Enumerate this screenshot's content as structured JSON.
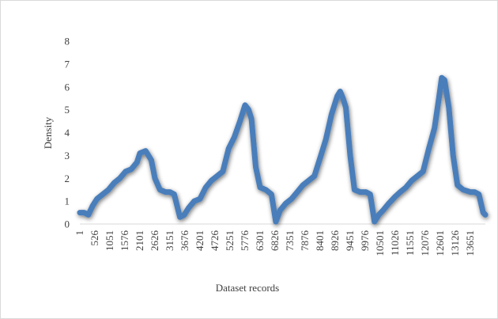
{
  "chart_data": {
    "type": "line",
    "title": "",
    "xlabel": "Dataset records",
    "ylabel": "Density",
    "ylim": [
      0,
      8
    ],
    "yticks": [
      0,
      1,
      2,
      3,
      4,
      5,
      6,
      7,
      8
    ],
    "xlim": [
      1,
      14176
    ],
    "xticks": [
      "1",
      "526",
      "1051",
      "1576",
      "2101",
      "2626",
      "3151",
      "3676",
      "4201",
      "4726",
      "5251",
      "5776",
      "6301",
      "6826",
      "7351",
      "7876",
      "8401",
      "8926",
      "9451",
      "9976",
      "10501",
      "11026",
      "11551",
      "12076",
      "12601",
      "13126",
      "13651"
    ],
    "grid": false,
    "legend": "none",
    "line_color": "#4a7ebb",
    "series": [
      {
        "x": [
          1,
          150,
          300,
          450,
          600,
          800,
          1000,
          1200,
          1400,
          1600,
          1800,
          2000,
          2101,
          2300,
          2500,
          2626,
          2800,
          3000,
          3151,
          3300,
          3500,
          3650,
          3800,
          4000,
          4201,
          4400,
          4600,
          4800,
          5000,
          5200,
          5400,
          5600,
          5776,
          5900,
          6000,
          6150,
          6301,
          6500,
          6700,
          6850,
          7000,
          7200,
          7400,
          7600,
          7800,
          8000,
          8200,
          8400,
          8600,
          8800,
          9000,
          9100,
          9200,
          9300,
          9451,
          9600,
          9800,
          10000,
          10150,
          10300,
          10450,
          10600,
          10800,
          11026,
          11200,
          11400,
          11600,
          11800,
          12000,
          12200,
          12400,
          12550,
          12650,
          12750,
          12900,
          13050,
          13200,
          13400,
          13651,
          13800,
          13950,
          14100,
          14176
        ],
        "y": [
          0.5,
          0.5,
          0.4,
          0.8,
          1.1,
          1.3,
          1.5,
          1.8,
          2.0,
          2.3,
          2.4,
          2.7,
          3.1,
          3.2,
          2.8,
          2.0,
          1.5,
          1.4,
          1.4,
          1.3,
          0.3,
          0.4,
          0.7,
          1.0,
          1.1,
          1.6,
          1.9,
          2.1,
          2.3,
          3.3,
          3.8,
          4.5,
          5.2,
          5.0,
          4.6,
          2.5,
          1.6,
          1.5,
          1.3,
          0.1,
          0.6,
          0.9,
          1.1,
          1.4,
          1.7,
          1.9,
          2.1,
          2.9,
          3.7,
          4.8,
          5.6,
          5.8,
          5.5,
          5.1,
          3.0,
          1.5,
          1.4,
          1.4,
          1.3,
          0.1,
          0.4,
          0.6,
          0.9,
          1.2,
          1.4,
          1.6,
          1.9,
          2.1,
          2.3,
          3.3,
          4.2,
          5.5,
          6.4,
          6.3,
          5.1,
          3.0,
          1.7,
          1.5,
          1.4,
          1.4,
          1.3,
          0.5,
          0.4
        ]
      }
    ]
  }
}
